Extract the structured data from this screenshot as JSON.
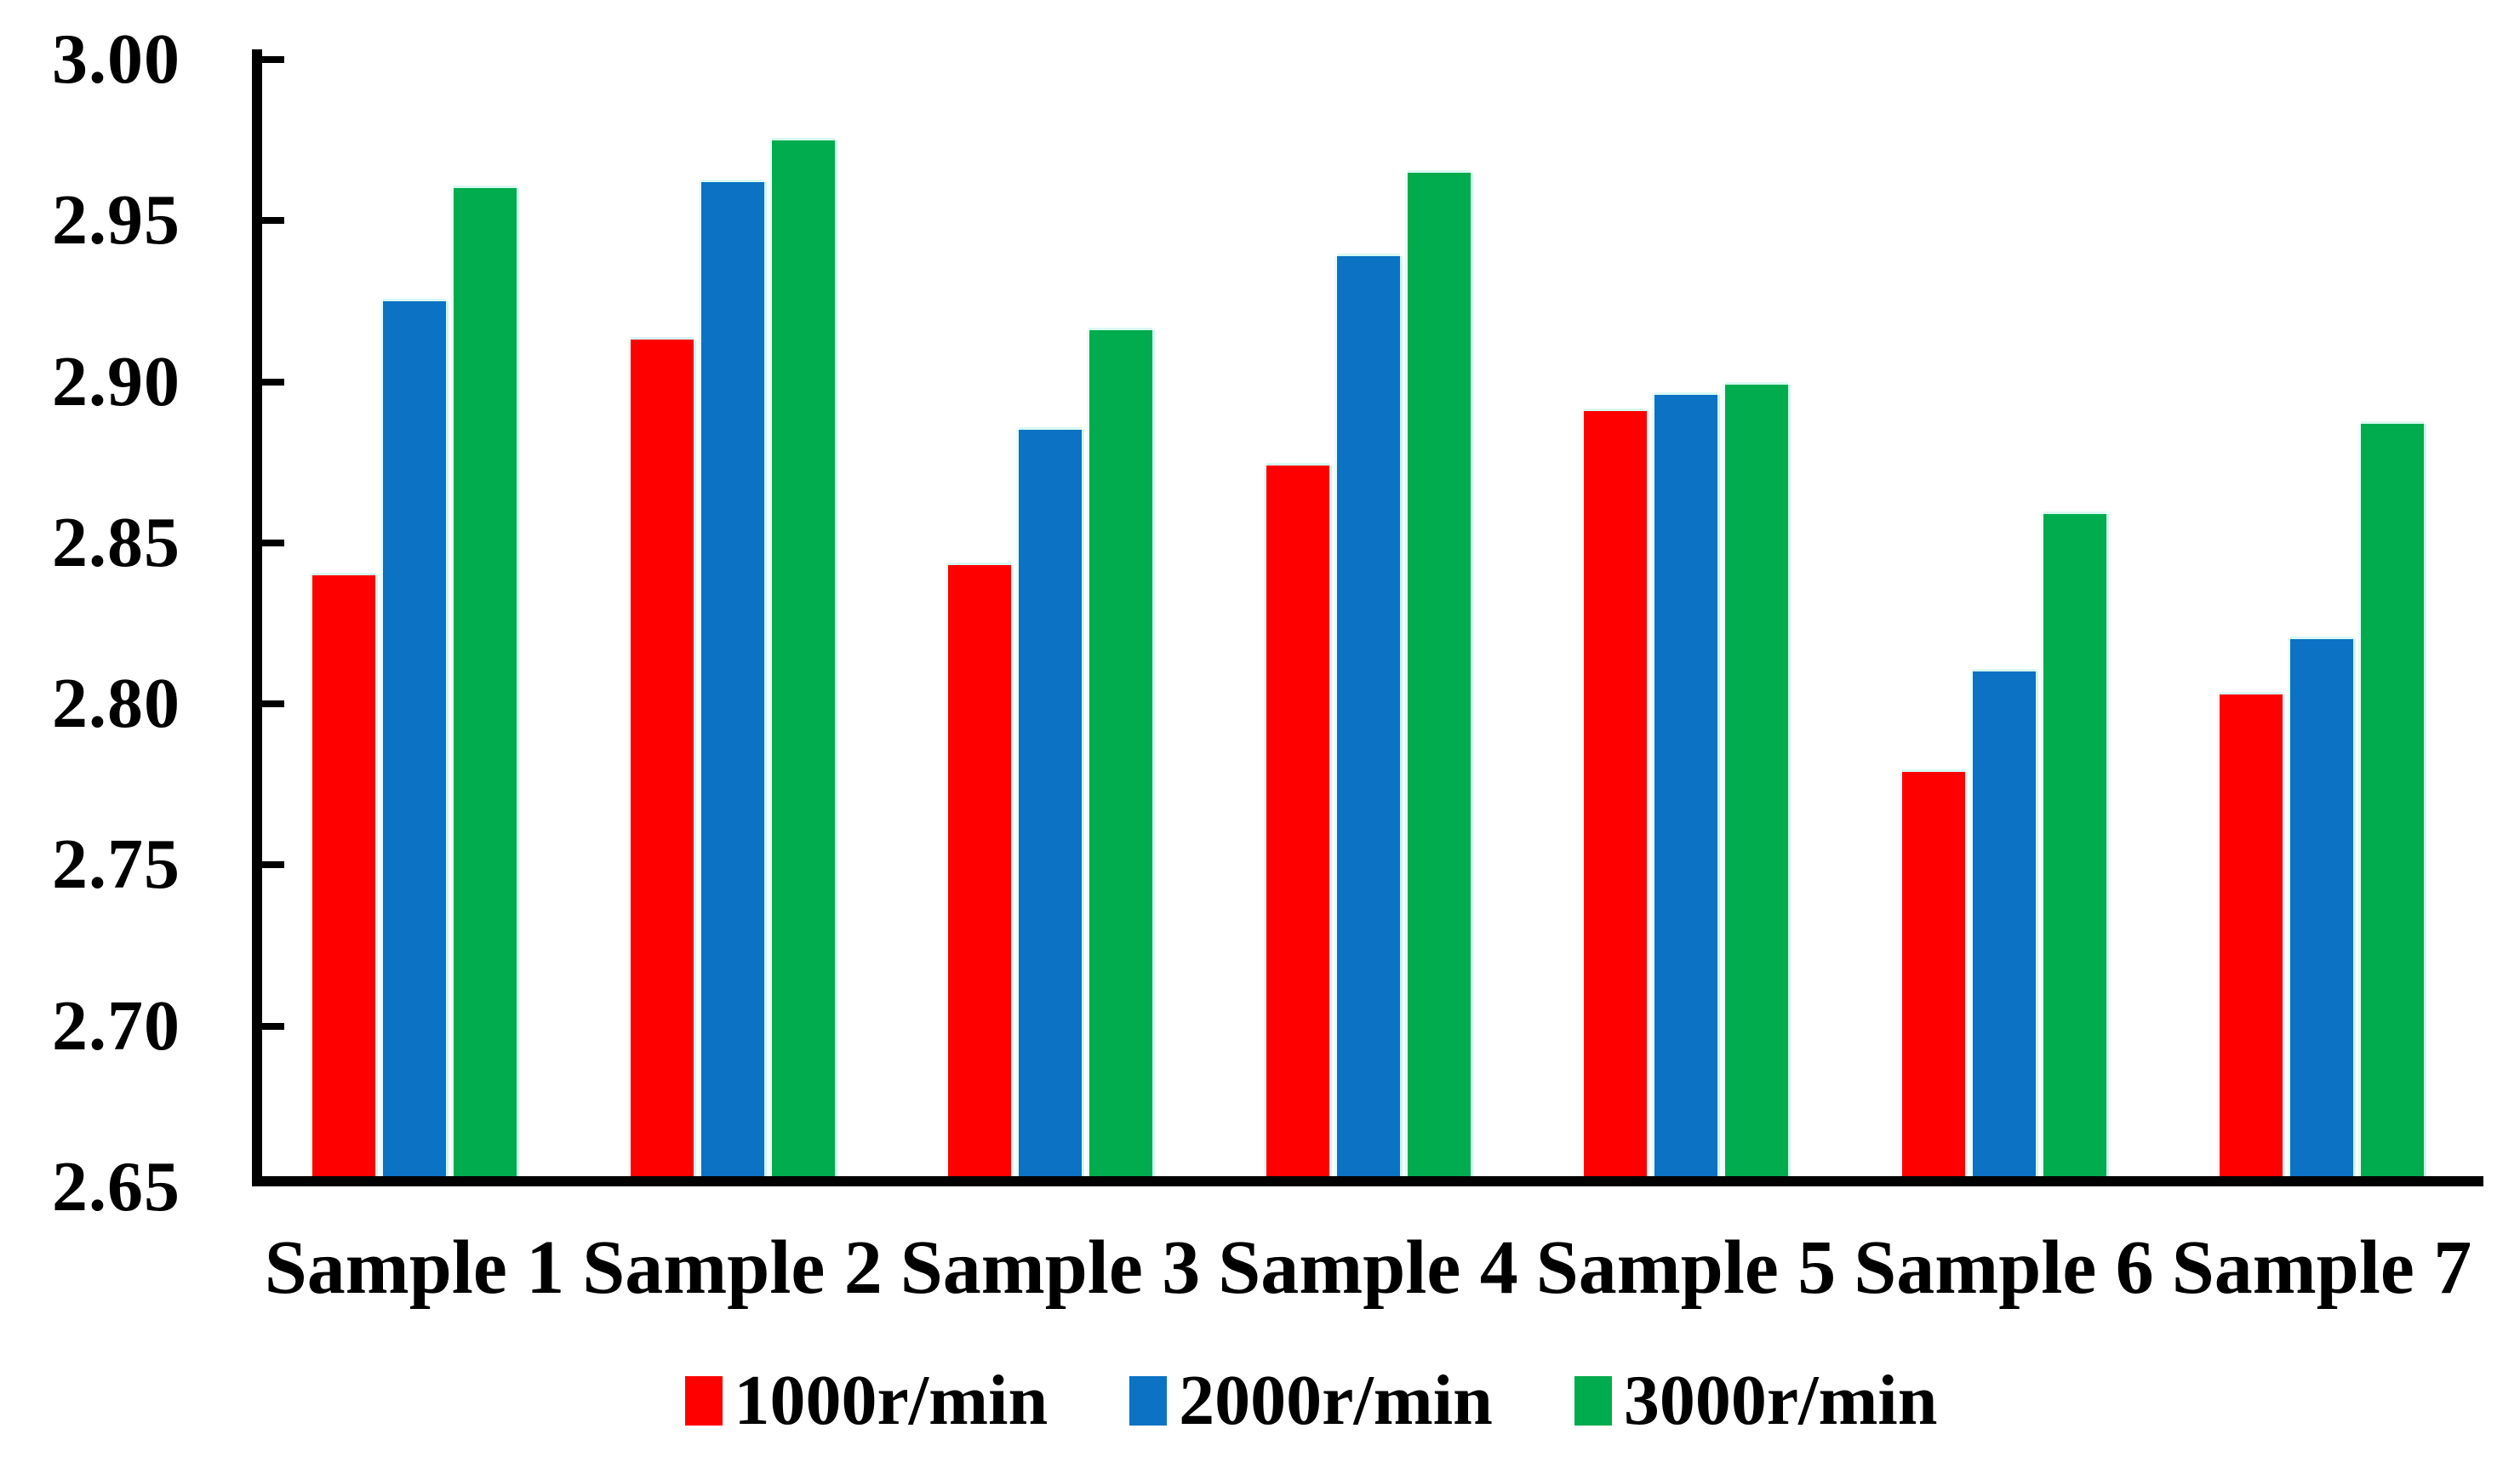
{
  "chart_data": {
    "type": "bar",
    "title": "",
    "xlabel": "",
    "ylabel": "",
    "categories": [
      "Sample 1",
      "Sample 2",
      "Sample 3",
      "Sample 4",
      "Sample 5",
      "Sample 6",
      "Sample 7"
    ],
    "series": [
      {
        "name": "1000r/min",
        "color": "#fe0000",
        "values": [
          2.84,
          2.913,
          2.843,
          2.874,
          2.891,
          2.779,
          2.803
        ]
      },
      {
        "name": "2000r/min",
        "color": "#0b72c4",
        "values": [
          2.925,
          2.962,
          2.885,
          2.939,
          2.896,
          2.81,
          2.82
        ]
      },
      {
        "name": "3000r/min",
        "color": "#00ac4d",
        "values": [
          2.96,
          2.975,
          2.916,
          2.965,
          2.899,
          2.859,
          2.887
        ]
      }
    ],
    "ylim": [
      2.65,
      3.0
    ],
    "ytick_step": 0.05,
    "ytick_labels": [
      "3.00",
      "2.95",
      "2.90",
      "2.85",
      "2.80",
      "2.75",
      "2.70",
      "2.65"
    ],
    "grid": false,
    "legend_position": "bottom",
    "axis_color": "#000000",
    "bar_halo_color": "#cdf5ee"
  }
}
